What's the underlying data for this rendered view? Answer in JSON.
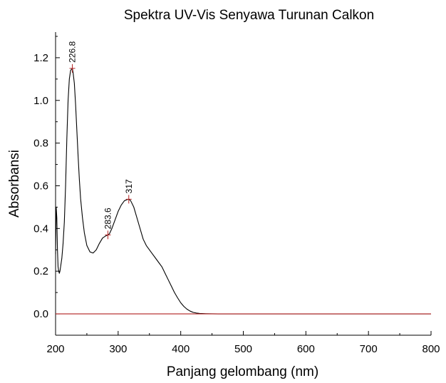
{
  "chart_data": {
    "type": "line",
    "title": "Spektra UV-Vis Senyawa Turunan Calkon",
    "xlabel": "Panjang gelombang (nm)",
    "ylabel": "Absorbansi",
    "xlim": [
      200,
      800
    ],
    "ylim": [
      -0.1,
      1.32
    ],
    "x_ticks": [
      "200",
      "300",
      "400",
      "500",
      "600",
      "700",
      "800"
    ],
    "y_ticks": [
      "0.0",
      "0.2",
      "0.4",
      "0.6",
      "0.8",
      "1.0",
      "1.2"
    ],
    "grid": false,
    "series": [
      {
        "color": "#000000",
        "x": [
          200,
          201,
          202,
          203,
          204,
          205,
          206,
          207,
          208,
          210,
          212,
          214,
          216,
          218,
          220,
          222,
          224,
          226.8,
          228,
          230,
          232,
          234,
          236,
          238,
          240,
          243,
          246,
          250,
          255,
          260,
          265,
          270,
          275,
          280,
          283.6,
          286,
          290,
          295,
          300,
          305,
          310,
          314,
          317,
          320,
          325,
          330,
          335,
          340,
          345,
          350,
          355,
          360,
          365,
          370,
          375,
          380,
          385,
          390,
          395,
          400,
          405,
          410,
          415,
          420,
          425,
          430,
          440,
          460,
          500,
          600,
          700,
          800
        ],
        "y": [
          0.28,
          0.5,
          0.45,
          0.3,
          0.22,
          0.2,
          0.19,
          0.2,
          0.22,
          0.26,
          0.33,
          0.43,
          0.6,
          0.82,
          1.0,
          1.1,
          1.14,
          1.15,
          1.13,
          1.08,
          0.98,
          0.86,
          0.74,
          0.63,
          0.54,
          0.45,
          0.38,
          0.32,
          0.29,
          0.285,
          0.3,
          0.33,
          0.355,
          0.365,
          0.37,
          0.375,
          0.4,
          0.44,
          0.48,
          0.51,
          0.53,
          0.535,
          0.537,
          0.53,
          0.5,
          0.45,
          0.4,
          0.35,
          0.32,
          0.3,
          0.28,
          0.26,
          0.24,
          0.22,
          0.19,
          0.16,
          0.13,
          0.1,
          0.075,
          0.052,
          0.035,
          0.022,
          0.013,
          0.007,
          0.004,
          0.002,
          0.001,
          0.0,
          0.0,
          0.0,
          0.0,
          0.0
        ]
      },
      {
        "color": "#b22222",
        "x": [
          200,
          800
        ],
        "y": [
          0.0,
          0.0
        ]
      }
    ],
    "annotations": [
      {
        "label": "226.8",
        "x": 226.8,
        "y": 1.15
      },
      {
        "label": "283.6",
        "x": 283.6,
        "y": 0.37
      },
      {
        "label": "317",
        "x": 317,
        "y": 0.537
      }
    ],
    "colors": {
      "line": "#000000",
      "baseline": "#b22222",
      "marker": "#b22222",
      "axis": "#000000"
    }
  }
}
